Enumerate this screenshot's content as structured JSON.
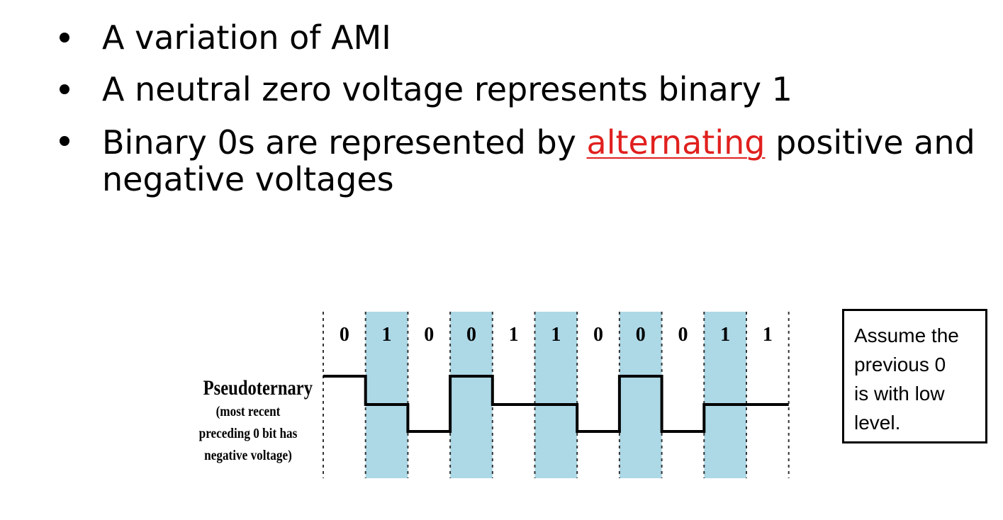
{
  "bullets": {
    "b1": "A variation of AMI",
    "b2": "A neutral zero voltage represents binary 1",
    "b3_before": "Binary 0s are represented by ",
    "b3_highlight": "alternating",
    "b3_after": " positive and negative voltages",
    "highlight_color": "#e0201e"
  },
  "diagram": {
    "bits": [
      "0",
      "1",
      "0",
      "0",
      "1",
      "1",
      "0",
      "0",
      "0",
      "1",
      "1"
    ],
    "levels": [
      "high",
      "zero",
      "low",
      "high",
      "zero",
      "zero",
      "low",
      "high",
      "low",
      "zero",
      "zero"
    ],
    "shaded_bits": [
      1,
      3,
      5,
      7,
      9
    ],
    "shade_color": "#add8e6",
    "label_title": "Pseudoternary",
    "label_sub": [
      "(most recent",
      "preceding 0 bit has",
      "negative voltage)"
    ]
  },
  "note": {
    "lines": [
      "Assume the",
      "previous 0",
      "is with low",
      "level."
    ]
  }
}
